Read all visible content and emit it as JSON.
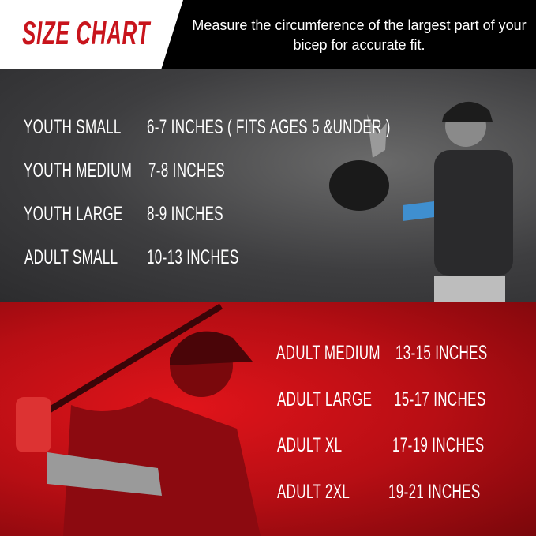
{
  "header": {
    "title": "SIZE CHART",
    "subtitle": "Measure the circumference of the largest part of your bicep for accurate fit."
  },
  "youth_sizes": [
    {
      "size": "YOUTH SMALL",
      "range": "6-7 INCHES ( FITS AGES 5 &UNDER )"
    },
    {
      "size": "YOUTH MEDIUM",
      "range": "7-8 INCHES"
    },
    {
      "size": "YOUTH LARGE",
      "range": "8-9 INCHES"
    },
    {
      "size": "ADULT SMALL",
      "range": "10-13 INCHES"
    }
  ],
  "adult_sizes": [
    {
      "size": "ADULT MEDIUM",
      "range": "13-15 INCHES"
    },
    {
      "size": "ADULT LARGE",
      "range": "15-17 INCHES"
    },
    {
      "size": "ADULT XL",
      "range": "17-19 INCHES"
    },
    {
      "size": "ADULT 2XL",
      "range": "19-21 INCHES"
    }
  ],
  "colors": {
    "brand_red": "#c8141c",
    "sleeve_blue": "#3f8fd0",
    "sleeve_gray": "#9a9a9a"
  }
}
